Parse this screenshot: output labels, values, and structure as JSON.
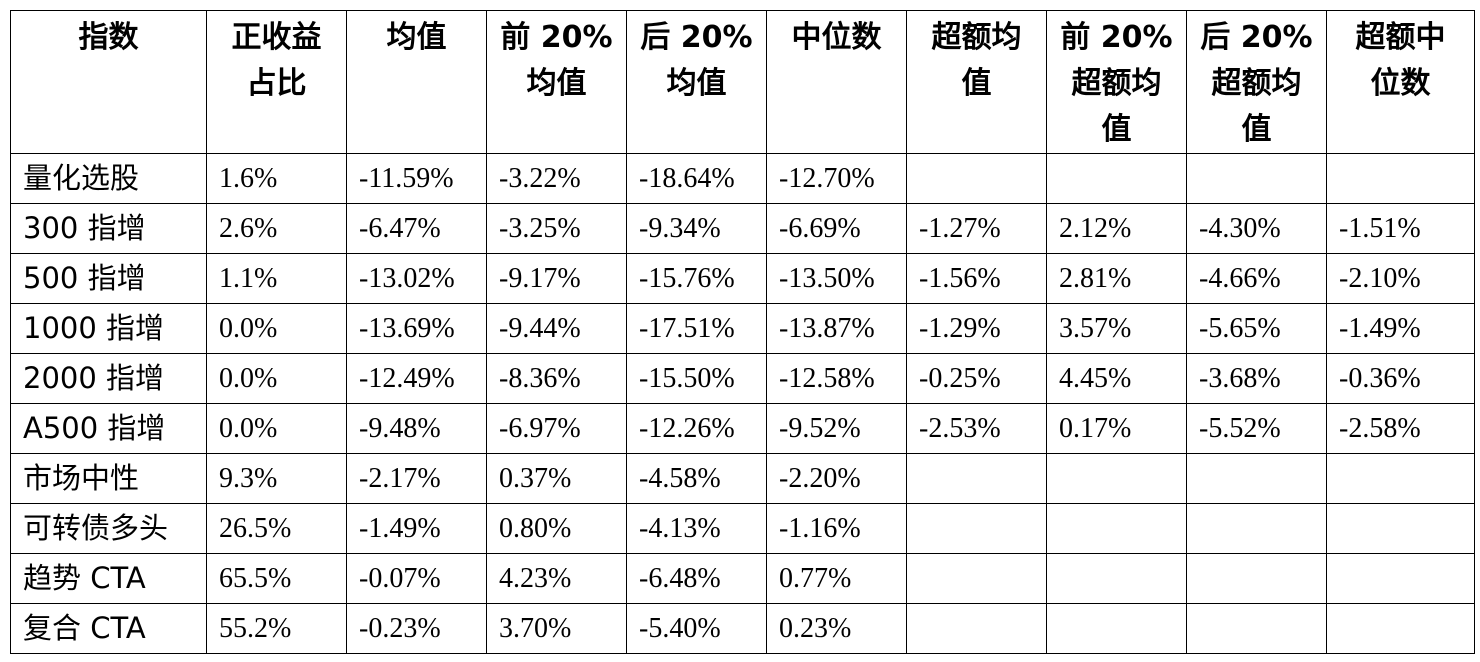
{
  "table": {
    "headers": [
      [
        "指数"
      ],
      [
        "正收益",
        "占比"
      ],
      [
        "均值"
      ],
      [
        "前 20%",
        "均值"
      ],
      [
        "后 20%",
        "均值"
      ],
      [
        "中位数"
      ],
      [
        "超额均",
        "值"
      ],
      [
        "前 20%",
        "超额均",
        "值"
      ],
      [
        "后 20%",
        "超额均",
        "值"
      ],
      [
        "超额中",
        "位数"
      ]
    ],
    "rows": [
      [
        "量化选股",
        "1.6%",
        "-11.59%",
        "-3.22%",
        "-18.64%",
        "-12.70%",
        "",
        "",
        "",
        ""
      ],
      [
        "300 指增",
        "2.6%",
        "-6.47%",
        "-3.25%",
        "-9.34%",
        "-6.69%",
        "-1.27%",
        "2.12%",
        "-4.30%",
        "-1.51%"
      ],
      [
        "500 指增",
        "1.1%",
        "-13.02%",
        "-9.17%",
        "-15.76%",
        "-13.50%",
        "-1.56%",
        "2.81%",
        "-4.66%",
        "-2.10%"
      ],
      [
        "1000 指增",
        "0.0%",
        "-13.69%",
        "-9.44%",
        "-17.51%",
        "-13.87%",
        "-1.29%",
        "3.57%",
        "-5.65%",
        "-1.49%"
      ],
      [
        "2000 指增",
        "0.0%",
        "-12.49%",
        "-8.36%",
        "-15.50%",
        "-12.58%",
        "-0.25%",
        "4.45%",
        "-3.68%",
        "-0.36%"
      ],
      [
        "A500 指增",
        "0.0%",
        "-9.48%",
        "-6.97%",
        "-12.26%",
        "-9.52%",
        "-2.53%",
        "0.17%",
        "-5.52%",
        "-2.58%"
      ],
      [
        "市场中性",
        "9.3%",
        "-2.17%",
        "0.37%",
        "-4.58%",
        "-2.20%",
        "",
        "",
        "",
        ""
      ],
      [
        "可转债多头",
        "26.5%",
        "-1.49%",
        "0.80%",
        "-4.13%",
        "-1.16%",
        "",
        "",
        "",
        ""
      ],
      [
        "趋势 CTA",
        "65.5%",
        "-0.07%",
        "4.23%",
        "-6.48%",
        "0.77%",
        "",
        "",
        "",
        ""
      ],
      [
        "复合 CTA",
        "55.2%",
        "-0.23%",
        "3.70%",
        "-5.40%",
        "0.23%",
        "",
        "",
        "",
        ""
      ]
    ]
  }
}
